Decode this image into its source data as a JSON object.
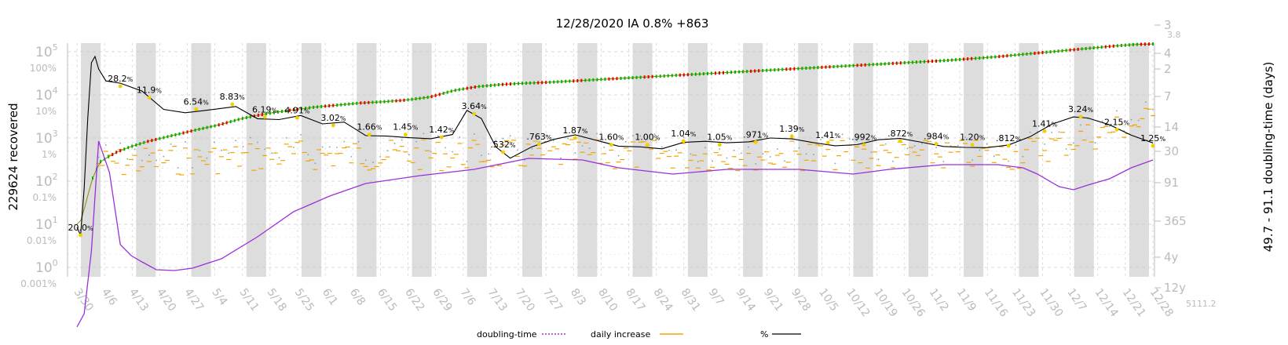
{
  "chart_data": {
    "type": "line",
    "title": "12/28/2020 IA 0.8% +863",
    "ylabel_left": "229624 recovered",
    "ylabel_right": "49.7 - 91.1 doubling-time (days)",
    "left_axis": {
      "scale": "log",
      "count_ticks": [
        "10^0",
        "10^1",
        "10^2",
        "10^3",
        "10^4",
        "10^5"
      ],
      "percent_ticks": [
        "0.001%",
        "0.01%",
        "0.1%",
        "1%",
        "10%",
        "100%"
      ]
    },
    "right_axis": {
      "ticks": [
        "3",
        "4",
        "2",
        "7",
        "14",
        "30",
        "91",
        "365",
        "4y",
        "12y"
      ],
      "top_small": "3.8",
      "bottom_small": "5111.2"
    },
    "x_ticks": [
      "3/30",
      "4/6",
      "4/13",
      "4/20",
      "4/27",
      "5/4",
      "5/11",
      "5/18",
      "5/25",
      "6/1",
      "6/8",
      "6/15",
      "6/22",
      "6/29",
      "7/6",
      "7/13",
      "7/20",
      "7/27",
      "8/3",
      "8/10",
      "8/17",
      "8/24",
      "8/31",
      "9/7",
      "9/14",
      "9/21",
      "9/28",
      "10/5",
      "10/12",
      "10/19",
      "10/26",
      "11/2",
      "11/9",
      "11/16",
      "11/23",
      "11/30",
      "12/7",
      "12/14",
      "12/21",
      "12/28"
    ],
    "grid": "dashed",
    "shading": "alternate weeks gray",
    "series": [
      {
        "name": "doubling-time",
        "color": "#9b30d9",
        "style": "dotted"
      },
      {
        "name": "daily increase",
        "color": "#f5a300",
        "style": "dash markers"
      },
      {
        "name": "%",
        "color": "#000000",
        "style": "solid"
      }
    ],
    "cumulative_log10": [
      [
        0,
        1.0
      ],
      [
        1,
        1.05
      ],
      [
        2,
        1.3
      ],
      [
        3,
        1.6
      ],
      [
        4,
        1.9
      ],
      [
        5,
        2.15
      ],
      [
        7,
        2.45
      ],
      [
        9,
        2.55
      ],
      [
        12,
        2.68
      ],
      [
        16,
        2.8
      ],
      [
        21,
        2.92
      ],
      [
        28,
        3.05
      ],
      [
        35,
        3.18
      ],
      [
        42,
        3.3
      ],
      [
        49,
        3.45
      ],
      [
        56,
        3.56
      ],
      [
        63,
        3.64
      ],
      [
        70,
        3.71
      ],
      [
        77,
        3.76
      ],
      [
        84,
        3.81
      ],
      [
        91,
        3.84
      ],
      [
        98,
        3.88
      ],
      [
        105,
        3.95
      ],
      [
        112,
        4.1
      ],
      [
        119,
        4.19
      ],
      [
        126,
        4.24
      ],
      [
        133,
        4.27
      ],
      [
        140,
        4.29
      ],
      [
        147,
        4.32
      ],
      [
        154,
        4.35
      ],
      [
        161,
        4.38
      ],
      [
        168,
        4.41
      ],
      [
        175,
        4.44
      ],
      [
        182,
        4.47
      ],
      [
        189,
        4.5
      ],
      [
        196,
        4.53
      ],
      [
        203,
        4.56
      ],
      [
        210,
        4.59
      ],
      [
        217,
        4.62
      ],
      [
        224,
        4.65
      ],
      [
        231,
        4.68
      ],
      [
        238,
        4.71
      ],
      [
        245,
        4.74
      ],
      [
        252,
        4.77
      ],
      [
        259,
        4.8
      ],
      [
        266,
        4.84
      ],
      [
        273,
        4.88
      ],
      [
        280,
        4.93
      ],
      [
        287,
        4.98
      ],
      [
        294,
        5.03
      ],
      [
        301,
        5.08
      ],
      [
        308,
        5.13
      ],
      [
        315,
        5.17
      ],
      [
        320,
        5.18
      ]
    ],
    "percent_labels": [
      {
        "day": 1,
        "text": "20.0"
      },
      {
        "day": 12,
        "text": "28.2"
      },
      {
        "day": 20,
        "text": "11.9"
      },
      {
        "day": 33,
        "text": "6.54"
      },
      {
        "day": 43,
        "text": "8.83"
      },
      {
        "day": 52,
        "text": "6.19"
      },
      {
        "day": 61,
        "text": "4.91"
      },
      {
        "day": 71,
        "text": "3.02"
      },
      {
        "day": 81,
        "text": "1.66"
      },
      {
        "day": 91,
        "text": "1.45"
      },
      {
        "day": 101,
        "text": "1.42"
      },
      {
        "day": 110,
        "text": "3.64"
      },
      {
        "day": 118,
        "text": ".532"
      },
      {
        "day": 128,
        "text": ".763"
      },
      {
        "day": 138,
        "text": "1.87"
      },
      {
        "day": 148,
        "text": "1.60"
      },
      {
        "day": 158,
        "text": "1.00"
      },
      {
        "day": 168,
        "text": "1.04"
      },
      {
        "day": 178,
        "text": "1.05"
      },
      {
        "day": 188,
        "text": ".971"
      },
      {
        "day": 198,
        "text": "1.39"
      },
      {
        "day": 208,
        "text": "1.41"
      },
      {
        "day": 218,
        "text": ".992"
      },
      {
        "day": 228,
        "text": ".872"
      },
      {
        "day": 238,
        "text": ".984"
      },
      {
        "day": 248,
        "text": "1.20"
      },
      {
        "day": 258,
        "text": ".812"
      },
      {
        "day": 268,
        "text": "1.41"
      },
      {
        "day": 278,
        "text": "3.24"
      },
      {
        "day": 288,
        "text": "2.15"
      },
      {
        "day": 298,
        "text": "1.25"
      }
    ]
  },
  "legend": {
    "doubling": "doubling-time",
    "daily": "daily increase",
    "percent": "%"
  }
}
